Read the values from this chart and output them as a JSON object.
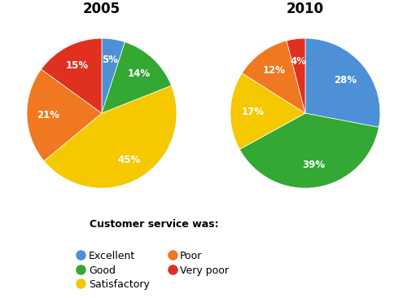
{
  "title_2005": "2005",
  "title_2010": "2010",
  "categories": [
    "Excellent",
    "Good",
    "Satisfactory",
    "Poor",
    "Very poor"
  ],
  "colors": [
    "#4d90d5",
    "#33a833",
    "#f5c800",
    "#f07820",
    "#e03020"
  ],
  "values_2005": [
    5,
    14,
    45,
    21,
    15
  ],
  "values_2010": [
    28,
    39,
    17,
    12,
    4
  ],
  "legend_title": "Customer service was:",
  "bg_color": "#ffffff",
  "startangle_2005": 90,
  "startangle_2010": 90
}
